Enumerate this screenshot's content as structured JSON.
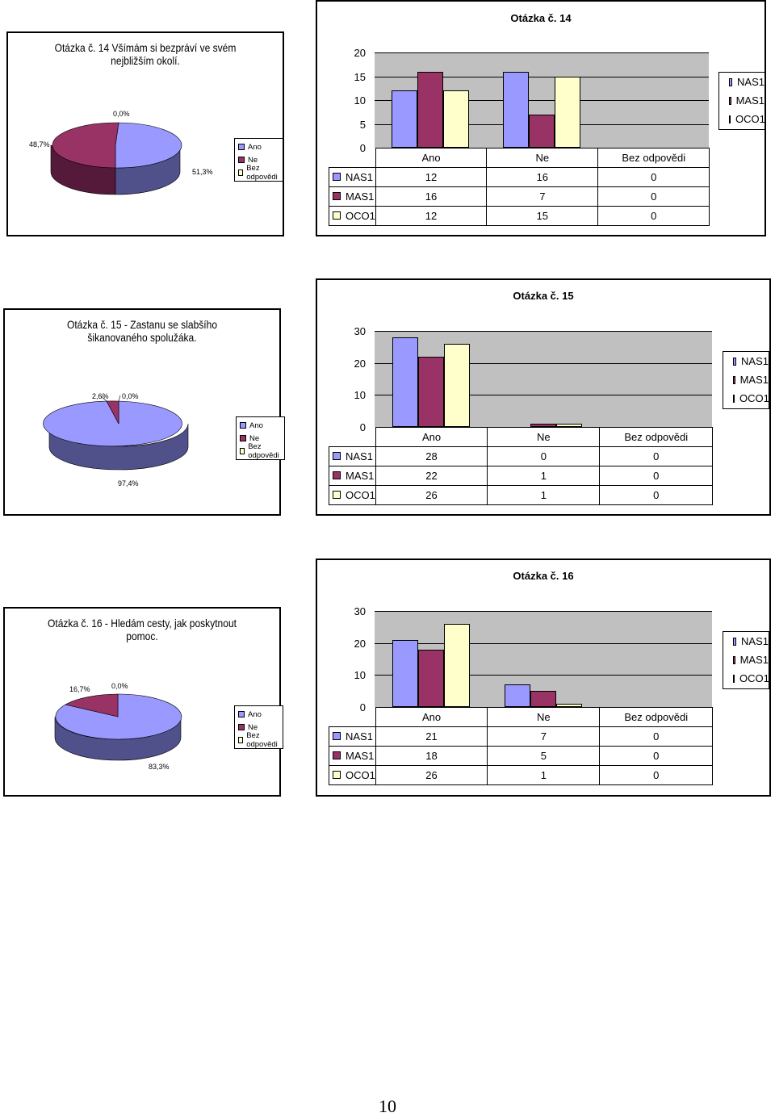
{
  "colors": {
    "nas1": "#9999ff",
    "mas1": "#993366",
    "oco1": "#ffffcc",
    "plot_bg": "#c0c0c0"
  },
  "page_number": "10",
  "sections": [
    {
      "pie": {
        "title_line1": "Otázka č. 14 Všímám si bezpráví ve svém",
        "title_line2": "nejbližším okolí.",
        "pct_ano": "51,3%",
        "pct_ne": "48,7%",
        "pct_bez": "0,0%",
        "legend": [
          "Ano",
          "Ne",
          "Bez odpovědi"
        ]
      },
      "chart_data": {
        "type": "bar",
        "title": "Otázka č. 14",
        "categories": [
          "Ano",
          "Ne",
          "Bez odpovědi"
        ],
        "yticks": [
          "20",
          "15",
          "10",
          "5",
          "0"
        ],
        "ylim": [
          0,
          20
        ],
        "series": [
          {
            "name": "NAS1",
            "values": [
              12,
              16,
              0
            ]
          },
          {
            "name": "MAS1",
            "values": [
              16,
              7,
              0
            ]
          },
          {
            "name": "OCO1",
            "values": [
              12,
              15,
              0
            ]
          }
        ]
      }
    },
    {
      "pie": {
        "title_line1": "Otázka č. 15 - Zastanu se slabšího",
        "title_line2": "šikanovaného spolužáka.",
        "pct_ano": "97,4%",
        "pct_ne": "2,6%",
        "pct_bez": "0,0%",
        "legend": [
          "Ano",
          "Ne",
          "Bez odpovědi"
        ]
      },
      "chart_data": {
        "type": "bar",
        "title": "Otázka č. 15",
        "categories": [
          "Ano",
          "Ne",
          "Bez odpovědi"
        ],
        "yticks": [
          "30",
          "20",
          "10",
          "0"
        ],
        "ylim": [
          0,
          30
        ],
        "series": [
          {
            "name": "NAS1",
            "values": [
              28,
              0,
              0
            ]
          },
          {
            "name": "MAS1",
            "values": [
              22,
              1,
              0
            ]
          },
          {
            "name": "OCO1",
            "values": [
              26,
              1,
              0
            ]
          }
        ]
      }
    },
    {
      "pie": {
        "title_line1": "Otázka č. 16 - Hledám cesty, jak poskytnout",
        "title_line2": "pomoc.",
        "pct_ano": "83,3%",
        "pct_ne": "16,7%",
        "pct_bez": "0,0%",
        "legend": [
          "Ano",
          "Ne",
          "Bez odpovědi"
        ]
      },
      "chart_data": {
        "type": "bar",
        "title": "Otázka č. 16",
        "categories": [
          "Ano",
          "Ne",
          "Bez odpovědi"
        ],
        "yticks": [
          "30",
          "20",
          "10",
          "0"
        ],
        "ylim": [
          0,
          30
        ],
        "series": [
          {
            "name": "NAS1",
            "values": [
              21,
              7,
              0
            ]
          },
          {
            "name": "MAS1",
            "values": [
              18,
              5,
              0
            ]
          },
          {
            "name": "OCO1",
            "values": [
              26,
              1,
              0
            ]
          }
        ]
      }
    }
  ]
}
